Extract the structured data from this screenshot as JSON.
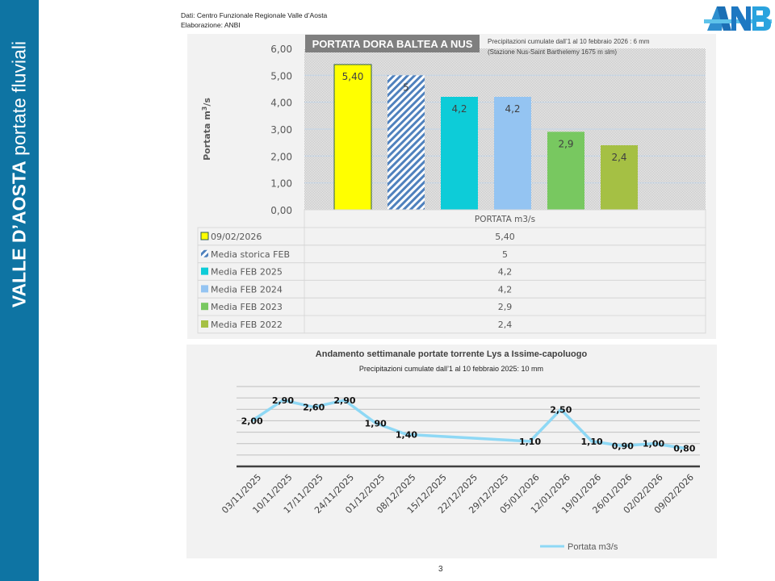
{
  "sidebar": {
    "title_strong": "VALLE D’AOSTA",
    "title_light": " portate fluviali",
    "background": "#0E74A3"
  },
  "header": {
    "source_line": "Dati: Centro Funzionale Regionale Valle d’Aosta",
    "elaboration_line": "Elaborazione: ANBI",
    "logo_text": "ANBI"
  },
  "page_number": "3",
  "chart_data": [
    {
      "type": "bar",
      "title": "PORTATA DORA BALTEA A NUS",
      "annotation_line1": "Precipitazioni cumulate dall’1 al 10 febbraio 2026 : 6 mm",
      "annotation_line2": "(Stazione Nus-Saint Barthelemy 1675 m slm)",
      "ylabel": "Portata m",
      "ylabel_sup": "3",
      "ylabel_suffix": "/s",
      "xlabel": "PORTATA m3/s",
      "ylim": [
        0,
        6
      ],
      "yticks": [
        "0,00",
        "1,00",
        "2,00",
        "3,00",
        "4,00",
        "5,00",
        "6,00"
      ],
      "grid": true,
      "legend": "data-table-below",
      "series": [
        {
          "name": "09/02/2026",
          "value": 5.4,
          "label": "5,40",
          "color": "#FFFF00",
          "pattern": "solid-outlined"
        },
        {
          "name": "Media storica FEB",
          "value": 5,
          "label": "5",
          "color": "#4F81BD",
          "pattern": "diagonal-stripes"
        },
        {
          "name": "Media FEB 2025",
          "value": 4.2,
          "label": "4,2",
          "color": "#0DCCD8",
          "pattern": "solid"
        },
        {
          "name": "Media FEB 2024",
          "value": 4.2,
          "label": "4,2",
          "color": "#94C4F2",
          "pattern": "solid"
        },
        {
          "name": "Media FEB 2023",
          "value": 2.9,
          "label": "2,9",
          "color": "#78C860",
          "pattern": "solid"
        },
        {
          "name": "Media FEB 2022",
          "value": 2.4,
          "label": "2,4",
          "color": "#A5C044",
          "pattern": "solid"
        }
      ]
    },
    {
      "type": "line",
      "title": "Andamento settimanale portate torrente Lys a Issime-capoluogo",
      "subtitle": "Precipitazioni cumulate dall’1 al 10 febbraio 2025: 10 mm",
      "xlabel": "",
      "ylabel": "",
      "ylim": [
        0,
        3.5
      ],
      "grid": true,
      "legend": "bottom",
      "x": [
        "03/11/2025",
        "10/11/2025",
        "17/11/2025",
        "24/11/2025",
        "01/12/2025",
        "08/12/2025",
        "15/12/2025",
        "22/12/2025",
        "29/12/2025",
        "05/01/2026",
        "12/01/2026",
        "19/01/2026",
        "26/01/2026",
        "02/02/2026",
        "09/02/2026"
      ],
      "series": [
        {
          "name": "Portata m3/s",
          "color": "#8ED8F5",
          "values": [
            2.0,
            2.9,
            2.6,
            2.9,
            1.9,
            1.4,
            null,
            null,
            null,
            1.1,
            2.5,
            1.1,
            0.9,
            1.0,
            0.8
          ],
          "labels": [
            "2,00",
            "2,90",
            "2,60",
            "2,90",
            "1,90",
            "1,40",
            null,
            null,
            null,
            "1,10",
            "2,50",
            "1,10",
            "0,90",
            "1,00",
            "0,80"
          ]
        }
      ]
    }
  ]
}
